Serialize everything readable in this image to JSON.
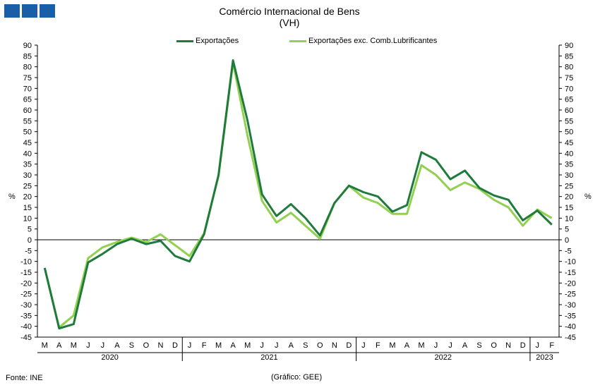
{
  "header": {
    "logo_icon": "ine-logo-blocks"
  },
  "chart_data": {
    "type": "line",
    "title": "Comércio Internacional de Bens",
    "subtitle": "(VH)",
    "ylabel_left": "%",
    "ylabel_right": "%",
    "ylim": [
      -45,
      90
    ],
    "ytick_step": 5,
    "grid": false,
    "legend_position": "top",
    "categories": [
      "M",
      "A",
      "M",
      "J",
      "J",
      "A",
      "S",
      "O",
      "N",
      "D",
      "J",
      "F",
      "M",
      "A",
      "M",
      "J",
      "J",
      "A",
      "S",
      "O",
      "N",
      "D",
      "J",
      "F",
      "M",
      "A",
      "M",
      "J",
      "J",
      "A",
      "S",
      "O",
      "N",
      "D",
      "J",
      "F"
    ],
    "year_labels": [
      {
        "label": "2020",
        "start": 0,
        "end": 9
      },
      {
        "label": "2021",
        "start": 10,
        "end": 21
      },
      {
        "label": "2022",
        "start": 22,
        "end": 33
      },
      {
        "label": "2023",
        "start": 34,
        "end": 35
      }
    ],
    "series": [
      {
        "name": "Exportações",
        "color": "#1e7b3c",
        "values": [
          -13,
          -41,
          -39,
          -10.5,
          -6.5,
          -2,
          0.5,
          -2,
          -0.5,
          -7.5,
          -10,
          2.5,
          30,
          83,
          55,
          21,
          11,
          16.5,
          10,
          2,
          17,
          25,
          22,
          20,
          13,
          16,
          40.5,
          37,
          28,
          32,
          24,
          20.5,
          18.5,
          9,
          13.5,
          7
        ]
      },
      {
        "name": "Exportações exc. Comb.Lubrificantes",
        "color": "#92d050",
        "values": [
          -13,
          -40.5,
          -35,
          -8.5,
          -3.5,
          -1,
          1,
          -1,
          2.5,
          -2.5,
          -7.5,
          3,
          29.5,
          82,
          48,
          18,
          8,
          12.5,
          6.5,
          0.5,
          17,
          25,
          19.5,
          17,
          12,
          12,
          34.5,
          30,
          23,
          26.5,
          23.5,
          18.5,
          15,
          6.5,
          14,
          10
        ]
      }
    ]
  },
  "footer": {
    "source": "Fonte: INE",
    "credit": "(Gráfico: GEE)"
  }
}
